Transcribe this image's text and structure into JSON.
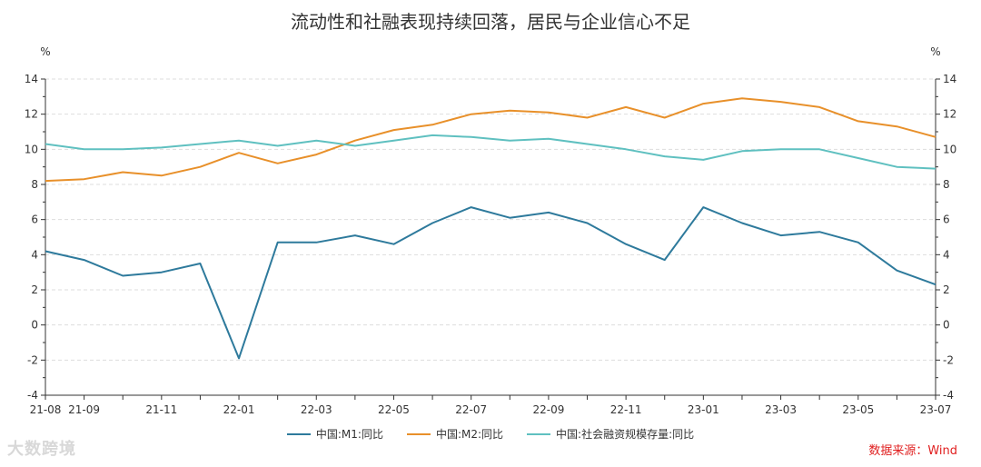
{
  "chart_data": {
    "type": "line",
    "title": "流动性和社融表现持续回落，居民与企业信心不足",
    "ylabel_left": "%",
    "ylabel_right": "%",
    "ylim": [
      -4,
      14
    ],
    "yticks": [
      -4,
      -2,
      0,
      2,
      4,
      6,
      8,
      10,
      12,
      14
    ],
    "x": [
      "21-08",
      "21-09",
      "21-10",
      "21-11",
      "21-12",
      "22-01",
      "22-02",
      "22-03",
      "22-04",
      "22-05",
      "22-06",
      "22-07",
      "22-08",
      "22-09",
      "22-10",
      "22-11",
      "22-12",
      "23-01",
      "23-02",
      "23-03",
      "23-04",
      "23-05",
      "23-06",
      "23-07"
    ],
    "xtick_labels": [
      "21-08",
      "21-09",
      "21-11",
      "22-01",
      "22-03",
      "22-05",
      "22-07",
      "22-09",
      "22-11",
      "23-01",
      "23-03",
      "23-05",
      "23-07"
    ],
    "grid": true,
    "legend_position": "bottom",
    "series": [
      {
        "name": "中国:M1:同比",
        "color": "#2e7a9c",
        "values": [
          4.2,
          3.7,
          2.8,
          3.0,
          3.5,
          -1.9,
          4.7,
          4.7,
          5.1,
          4.6,
          5.8,
          6.7,
          6.1,
          6.4,
          5.8,
          4.6,
          3.7,
          6.7,
          5.8,
          5.1,
          5.3,
          4.7,
          3.1,
          2.3
        ]
      },
      {
        "name": "中国:M2:同比",
        "color": "#e8902a",
        "values": [
          8.2,
          8.3,
          8.7,
          8.5,
          9.0,
          9.8,
          9.2,
          9.7,
          10.5,
          11.1,
          11.4,
          12.0,
          12.2,
          12.1,
          11.8,
          12.4,
          11.8,
          12.6,
          12.9,
          12.7,
          12.4,
          11.6,
          11.3,
          10.7
        ]
      },
      {
        "name": "中国:社会融资规模存量:同比",
        "color": "#5fc0c0",
        "values": [
          10.3,
          10.0,
          10.0,
          10.1,
          10.3,
          10.5,
          10.2,
          10.5,
          10.2,
          10.5,
          10.8,
          10.7,
          10.5,
          10.6,
          10.3,
          10.0,
          9.6,
          9.4,
          9.9,
          10.0,
          10.0,
          9.5,
          9.0,
          8.9
        ]
      }
    ]
  },
  "footer": {
    "watermark": "大数跨境",
    "source": "数据来源：Wind"
  }
}
